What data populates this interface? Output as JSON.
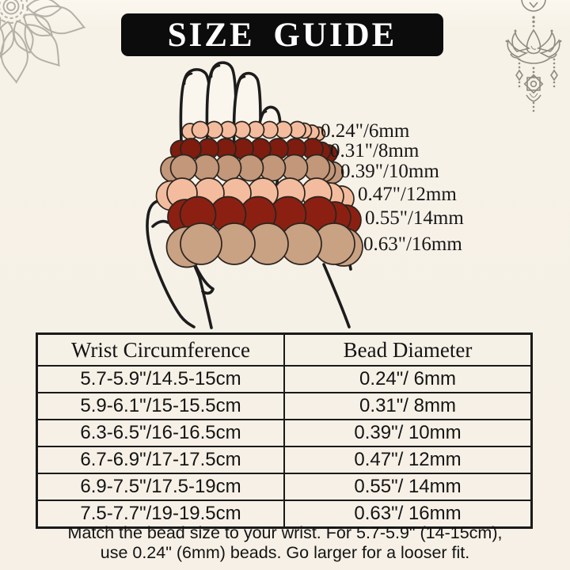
{
  "title": "SIZE GUIDE",
  "bracelets": [
    {
      "label": "0.24\"/6mm",
      "color": "#f4bc9e"
    },
    {
      "label": "0.31\"/8mm",
      "color": "#7d1c0f"
    },
    {
      "label": "0.39\"/10mm",
      "color": "#c3977a"
    },
    {
      "label": "0.47\"/12mm",
      "color": "#f4bc9e"
    },
    {
      "label": "0.55\"/14mm",
      "color": "#8b2012"
    },
    {
      "label": "0.63\"/16mm",
      "color": "#c9a183"
    }
  ],
  "table": {
    "headers": [
      "Wrist Circumference",
      "Bead Diameter"
    ],
    "rows": [
      [
        "5.7-5.9\"/14.5-15cm",
        "0.24\"/ 6mm"
      ],
      [
        "5.9-6.1\"/15-15.5cm",
        "0.31\"/ 8mm"
      ],
      [
        "6.3-6.5\"/16-16.5cm",
        "0.39\"/ 10mm"
      ],
      [
        "6.7-6.9\"/17-17.5cm",
        "0.47\"/ 12mm"
      ],
      [
        "6.9-7.5\"/17.5-19cm",
        "0.55\"/ 14mm"
      ],
      [
        "7.5-7.7\"/19-19.5cm",
        "0.63\"/ 16mm"
      ]
    ]
  },
  "note": {
    "line1": "Match the bead size to your wrist. For 5.7-5.9\" (14-15cm),",
    "line2": "use 0.24\" (6mm) beads. Go larger for a looser fit."
  },
  "colors": {
    "background": "#f7f2e8",
    "banner_bg": "#0c0c0c",
    "banner_text": "#ffffff",
    "text": "#151515",
    "hand_outline": "#1c1c1c",
    "hand_fill": "#faf6ee",
    "bead_stroke": "#2b241e",
    "ornament": "#948f84"
  },
  "icons": {
    "top_left": "mandala-icon",
    "top_right": "lotus-ornament-icon"
  }
}
